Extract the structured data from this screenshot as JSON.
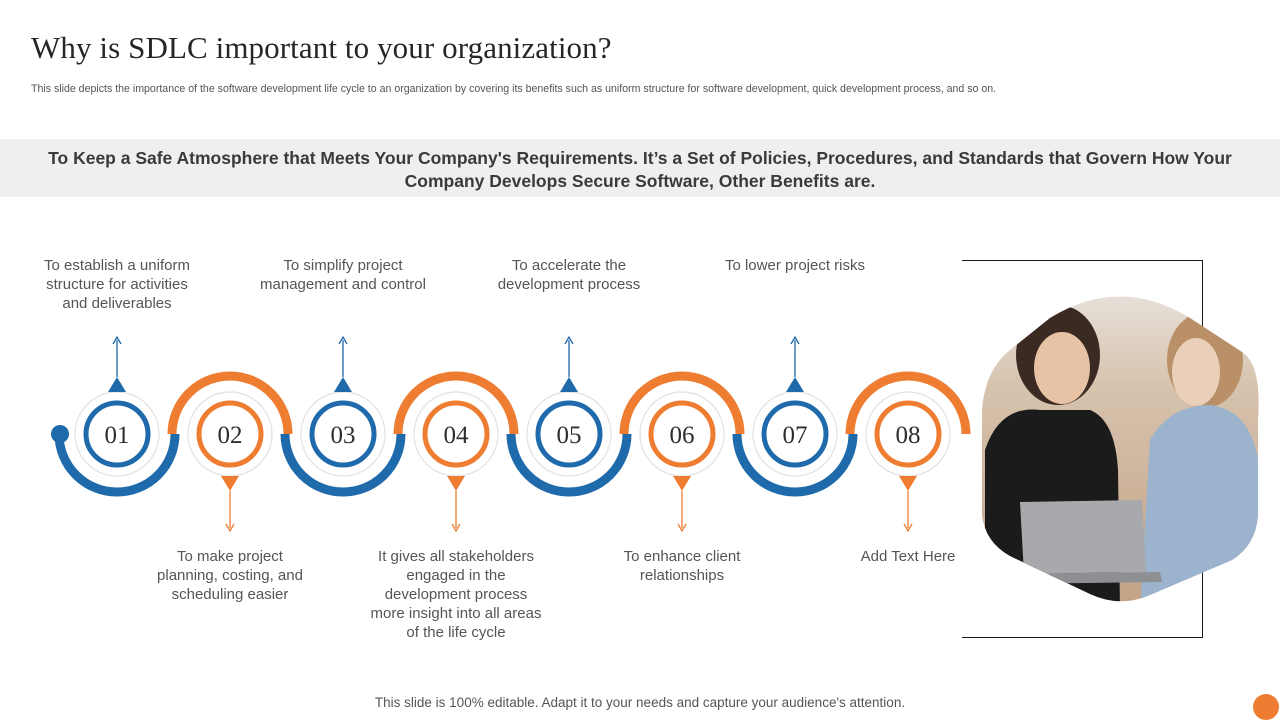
{
  "title": "Why is SDLC important to your organization?",
  "subtitle": "This slide depicts the importance of the software development life cycle to  an organization by covering its benefits such as uniform structure for software development, quick development process, and so on.",
  "banner": "To Keep a Safe Atmosphere that Meets Your Company's Requirements. It’s a Set of Policies, Procedures, and Standards that Govern How Your Company Develops Secure Software, Other Benefits are.",
  "colors": {
    "blue": "#1f6aab",
    "orange": "#ee7d31",
    "banner_bg": "#efefef"
  },
  "steps": [
    {
      "number": "01",
      "text": "To establish a uniform structure for activities and deliverables",
      "color": "blue"
    },
    {
      "number": "02",
      "text": "To make project planning,  costing, and scheduling easier",
      "color": "orange"
    },
    {
      "number": "03",
      "text": "To simplify project management and control",
      "color": "blue"
    },
    {
      "number": "04",
      "text": "It gives all stakeholders engaged in the development process more insight into all areas of the life cycle",
      "color": "orange"
    },
    {
      "number": "05",
      "text": "To accelerate the development process",
      "color": "blue"
    },
    {
      "number": "06",
      "text": "To enhance  client relationships",
      "color": "orange"
    },
    {
      "number": "07",
      "text": "To lower project risks",
      "color": "blue"
    },
    {
      "number": "08",
      "text": "Add Text Here",
      "color": "orange"
    }
  ],
  "footer": "This slide is 100% editable. Adapt it to your needs and capture your audience's attention."
}
